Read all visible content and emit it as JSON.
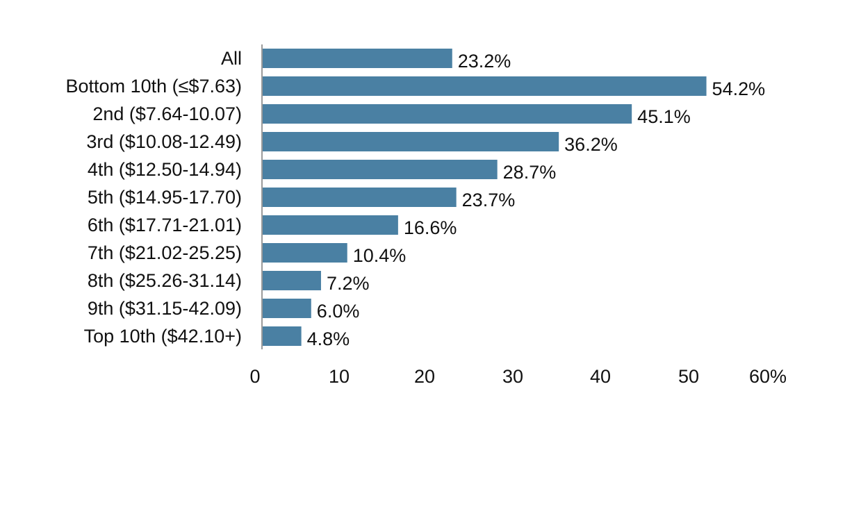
{
  "chart_data": {
    "type": "bar",
    "orientation": "horizontal",
    "title": "",
    "xlabel": "",
    "ylabel": "",
    "categories": [
      "All",
      "Bottom 10th (≤$7.63)",
      "2nd ($7.64-10.07)",
      "3rd ($10.08-12.49)",
      "4th ($12.50-14.94)",
      "5th ($14.95-17.70)",
      "6th ($17.71-21.01)",
      "7th ($21.02-25.25)",
      "8th ($25.26-31.14)",
      "9th ($31.15-42.09)",
      "Top 10th ($42.10+)"
    ],
    "values": [
      23.2,
      54.2,
      45.1,
      36.2,
      28.7,
      23.7,
      16.6,
      10.4,
      7.2,
      6.0,
      4.8
    ],
    "value_labels": [
      "23.2%",
      "54.2%",
      "45.1%",
      "36.2%",
      "28.7%",
      "23.7%",
      "16.6%",
      "10.4%",
      "7.2%",
      "6.0%",
      "4.8%"
    ],
    "xlim": [
      0,
      60
    ],
    "x_ticks": [
      0,
      10,
      20,
      30,
      40,
      50,
      60
    ],
    "x_tick_labels": [
      "0",
      "10",
      "20",
      "30",
      "40",
      "50",
      "60%"
    ],
    "grid": false,
    "legend": "none",
    "bar_color": "#4a80a3",
    "axis_color": "#9a9a9a"
  }
}
